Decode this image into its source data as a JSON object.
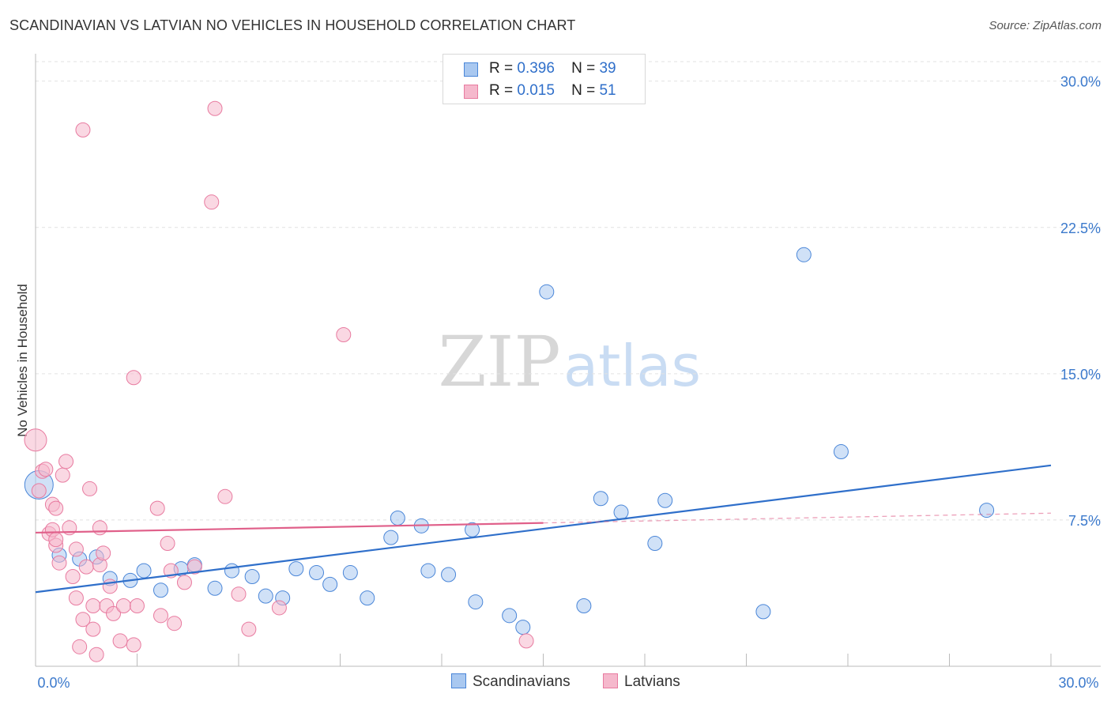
{
  "title": "SCANDINAVIAN VS LATVIAN NO VEHICLES IN HOUSEHOLD CORRELATION CHART",
  "source": "Source: ZipAtlas.com",
  "watermark": {
    "zip": "ZIP",
    "atlas": "atlas"
  },
  "legend": {
    "r_label": "R =",
    "n_label": "N =",
    "rows": [
      {
        "r": "0.396",
        "n": "39",
        "color": "#a9c8f0"
      },
      {
        "r": "0.015",
        "n": "51",
        "color": "#f5b8cc"
      }
    ]
  },
  "chart_data": {
    "type": "scatter",
    "title": "SCANDINAVIAN VS LATVIAN NO VEHICLES IN HOUSEHOLD CORRELATION CHART",
    "xlabel": "",
    "ylabel": "No Vehicles in Household",
    "xlim": [
      0,
      30
    ],
    "ylim": [
      0,
      31
    ],
    "x_tick_labels": [
      "0.0%",
      "30.0%"
    ],
    "y_ticks": [
      7.5,
      15.0,
      22.5,
      30.0
    ],
    "y_tick_labels": [
      "7.5%",
      "15.0%",
      "22.5%",
      "30.0%"
    ],
    "grid": "horizontal dashed",
    "legend_position": "top-center",
    "series": [
      {
        "name": "Scandinavians",
        "color": "#a9c8f0",
        "stroke": "#4a86d8",
        "line_color": "#2f6fca",
        "trend": {
          "x": [
            0,
            30
          ],
          "y": [
            3.8,
            10.3
          ]
        },
        "points": [
          [
            0.1,
            9.3,
            18
          ],
          [
            1.3,
            5.5,
            9
          ],
          [
            1.8,
            5.6,
            9
          ],
          [
            0.7,
            5.7,
            9
          ],
          [
            2.2,
            4.5,
            9
          ],
          [
            2.8,
            4.4,
            9
          ],
          [
            3.2,
            4.9,
            9
          ],
          [
            3.7,
            3.9,
            9
          ],
          [
            4.3,
            5.0,
            9
          ],
          [
            4.7,
            5.2,
            9
          ],
          [
            5.3,
            4.0,
            9
          ],
          [
            5.8,
            4.9,
            9
          ],
          [
            6.4,
            4.6,
            9
          ],
          [
            6.8,
            3.6,
            9
          ],
          [
            7.3,
            3.5,
            9
          ],
          [
            7.7,
            5.0,
            9
          ],
          [
            8.3,
            4.8,
            9
          ],
          [
            8.7,
            4.2,
            9
          ],
          [
            9.3,
            4.8,
            9
          ],
          [
            9.8,
            3.5,
            9
          ],
          [
            10.5,
            6.6,
            9
          ],
          [
            10.7,
            7.6,
            9
          ],
          [
            11.4,
            7.2,
            9
          ],
          [
            11.6,
            4.9,
            9
          ],
          [
            12.2,
            4.7,
            9
          ],
          [
            12.9,
            7.0,
            9
          ],
          [
            13.0,
            3.3,
            9
          ],
          [
            14.0,
            2.6,
            9
          ],
          [
            14.4,
            2.0,
            9
          ],
          [
            15.1,
            19.2,
            9
          ],
          [
            16.2,
            3.1,
            9
          ],
          [
            16.7,
            8.6,
            9
          ],
          [
            17.3,
            7.9,
            9
          ],
          [
            18.3,
            6.3,
            9
          ],
          [
            18.6,
            8.5,
            9
          ],
          [
            21.5,
            2.8,
            9
          ],
          [
            22.7,
            21.1,
            9
          ],
          [
            23.8,
            11.0,
            9
          ],
          [
            28.1,
            8.0,
            9
          ]
        ]
      },
      {
        "name": "Latvians",
        "color": "#f5b8cc",
        "stroke": "#e87ba0",
        "line_color": "#e0608a",
        "trend": {
          "x": [
            0,
            15.0
          ],
          "y": [
            6.85,
            7.35
          ]
        },
        "trend_dashed": {
          "x": [
            15.0,
            30
          ],
          "y": [
            7.35,
            7.85
          ]
        },
        "points": [
          [
            0.0,
            11.6,
            14
          ],
          [
            0.2,
            10.0,
            9
          ],
          [
            0.3,
            10.1,
            9
          ],
          [
            0.4,
            6.8,
            9
          ],
          [
            0.5,
            7.0,
            9
          ],
          [
            0.6,
            6.2,
            9
          ],
          [
            0.5,
            8.3,
            9
          ],
          [
            0.6,
            6.5,
            9
          ],
          [
            0.7,
            5.3,
            9
          ],
          [
            0.8,
            9.8,
            9
          ],
          [
            0.9,
            10.5,
            9
          ],
          [
            1.0,
            7.1,
            9
          ],
          [
            1.1,
            4.6,
            9
          ],
          [
            1.2,
            3.5,
            9
          ],
          [
            1.2,
            6.0,
            9
          ],
          [
            1.3,
            1.0,
            9
          ],
          [
            1.4,
            2.4,
            9
          ],
          [
            1.5,
            5.1,
            9
          ],
          [
            1.6,
            9.1,
            9
          ],
          [
            1.7,
            1.9,
            9
          ],
          [
            1.7,
            3.1,
            9
          ],
          [
            1.8,
            0.6,
            9
          ],
          [
            1.9,
            7.1,
            9
          ],
          [
            1.9,
            5.2,
            9
          ],
          [
            2.0,
            5.8,
            9
          ],
          [
            2.1,
            3.1,
            9
          ],
          [
            2.2,
            4.1,
            9
          ],
          [
            2.3,
            2.7,
            9
          ],
          [
            2.5,
            1.3,
            9
          ],
          [
            2.6,
            3.1,
            9
          ],
          [
            2.9,
            14.8,
            9
          ],
          [
            2.9,
            1.1,
            9
          ],
          [
            3.0,
            3.1,
            9
          ],
          [
            3.6,
            8.1,
            9
          ],
          [
            3.7,
            2.6,
            9
          ],
          [
            3.9,
            6.3,
            9
          ],
          [
            4.0,
            4.9,
            9
          ],
          [
            4.1,
            2.2,
            9
          ],
          [
            4.4,
            4.3,
            9
          ],
          [
            4.7,
            5.1,
            9
          ],
          [
            5.2,
            23.8,
            9
          ],
          [
            5.3,
            28.6,
            9
          ],
          [
            5.6,
            8.7,
            9
          ],
          [
            6.0,
            3.7,
            9
          ],
          [
            6.3,
            1.9,
            9
          ],
          [
            7.2,
            3.0,
            9
          ],
          [
            9.1,
            17.0,
            9
          ],
          [
            14.5,
            1.3,
            9
          ],
          [
            1.4,
            27.5,
            9
          ],
          [
            0.1,
            9.0,
            9
          ],
          [
            0.6,
            8.1,
            9
          ]
        ]
      }
    ]
  },
  "bottom_legend": [
    {
      "label": "Scandinavians",
      "color": "#a9c8f0",
      "stroke": "#4a86d8"
    },
    {
      "label": "Latvians",
      "color": "#f5b8cc",
      "stroke": "#e87ba0"
    }
  ]
}
